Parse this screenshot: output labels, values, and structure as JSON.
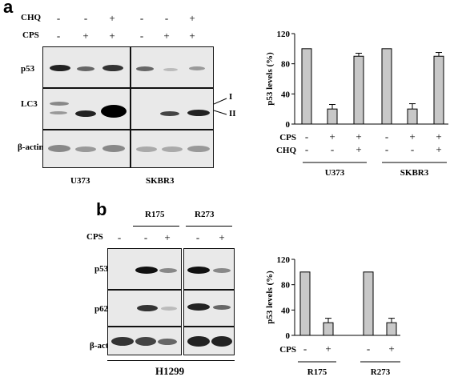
{
  "panel_a": {
    "letter": "a",
    "treatments": [
      {
        "label": "CHQ",
        "signs": [
          "-",
          "-",
          "+",
          "-",
          "-",
          "+"
        ]
      },
      {
        "label": "CPS",
        "signs": [
          "-",
          "+",
          "+",
          "-",
          "+",
          "+"
        ]
      }
    ],
    "blot_rows": [
      "p53",
      "LC3",
      "β-actin"
    ],
    "lc3_markers": [
      "I",
      "II"
    ],
    "cell_lines": [
      "U373",
      "SKBR3"
    ]
  },
  "panel_b": {
    "letter": "b",
    "mutants": [
      "R175",
      "R273"
    ],
    "treatment": {
      "label": "CPS",
      "signs": [
        "-",
        "-",
        "+",
        "-",
        "+"
      ]
    },
    "blot_rows": [
      "p53",
      "p62",
      "β-actin"
    ],
    "cell_line": "H1299"
  },
  "chart_data": [
    {
      "type": "bar",
      "ylabel": "p53 levels (%)",
      "ylim": [
        0,
        120
      ],
      "yticks": [
        0,
        40,
        80,
        120
      ],
      "values": [
        100,
        20,
        90,
        100,
        20,
        90
      ],
      "errors": [
        0,
        6,
        4,
        0,
        7,
        5
      ],
      "bar_color": "#c8c8c8",
      "rows": [
        {
          "label": "CPS",
          "signs": [
            "-",
            "+",
            "+",
            "-",
            "+",
            "+"
          ]
        },
        {
          "label": "CHQ",
          "signs": [
            "-",
            "-",
            "+",
            "-",
            "-",
            "+"
          ]
        }
      ],
      "groups": [
        {
          "label": "U373"
        },
        {
          "label": "SKBR3"
        }
      ]
    },
    {
      "type": "bar",
      "ylabel": "p53 levels (%)",
      "ylim": [
        0,
        120
      ],
      "yticks": [
        0,
        40,
        80,
        120
      ],
      "values": [
        100,
        20,
        100,
        20
      ],
      "errors": [
        0,
        7,
        0,
        7
      ],
      "bar_color": "#c8c8c8",
      "rows": [
        {
          "label": "CPS",
          "signs": [
            "-",
            "+",
            "-",
            "+"
          ]
        }
      ],
      "groups": [
        {
          "label": "R175"
        },
        {
          "label": "R273"
        }
      ]
    }
  ]
}
